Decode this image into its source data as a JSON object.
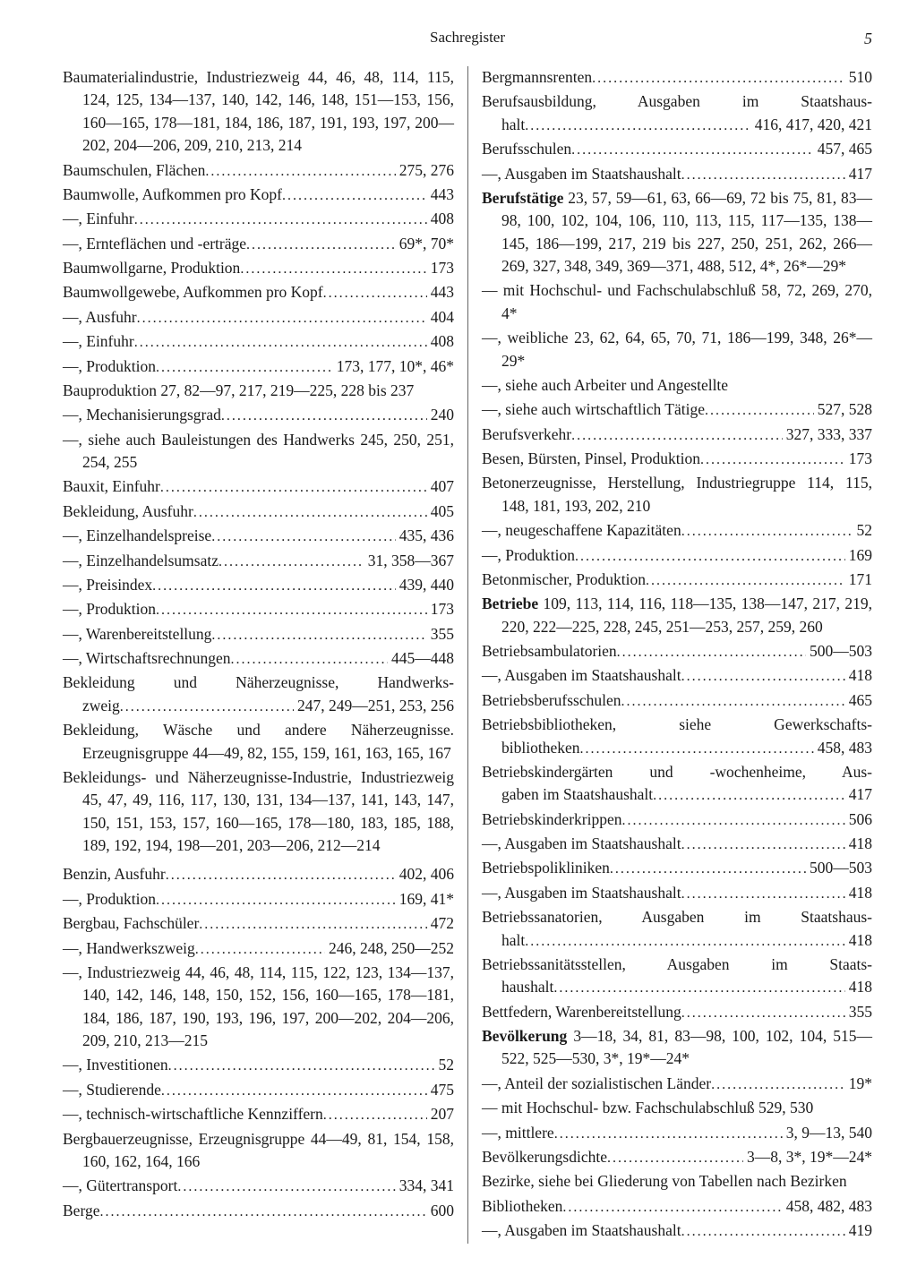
{
  "header": {
    "title": "Sachregister",
    "page": "5"
  },
  "left": [
    {
      "t": "wrap",
      "text": "Baumaterialindustrie, Industriezweig 44, 46, 48, 114, 115, 124, 125, 134—137, 140, 142, 146, 148, 151—153, 156, 160—165, 178—181, 184, 186, 187, 191, 193, 197, 200—202, 204—206, 209, 210, 213, 214"
    },
    {
      "t": "dot",
      "text": "Baumschulen, Flächen",
      "pages": "275, 276"
    },
    {
      "t": "dot",
      "text": "Baumwolle, Aufkommen pro Kopf",
      "pages": "443"
    },
    {
      "t": "dot",
      "text": "—, Einfuhr",
      "pages": "408"
    },
    {
      "t": "dot",
      "text": "—, Ernteflächen und -erträge",
      "pages": "69*, 70*"
    },
    {
      "t": "dot",
      "text": "Baumwollgarne, Produktion",
      "pages": "173"
    },
    {
      "t": "dot",
      "text": "Baumwollgewebe, Aufkommen pro Kopf",
      "pages": "443"
    },
    {
      "t": "dot",
      "text": "—, Ausfuhr",
      "pages": "404"
    },
    {
      "t": "dot",
      "text": "—, Einfuhr",
      "pages": "408"
    },
    {
      "t": "dot",
      "text": "—, Produktion",
      "pages": "173, 177, 10*, 46*"
    },
    {
      "t": "wrap",
      "text": "Bauproduktion 27, 82—97, 217, 219—225, 228 bis 237"
    },
    {
      "t": "dot",
      "text": "—, Mechanisierungsgrad",
      "pages": "240"
    },
    {
      "t": "wrap",
      "text": "—, siehe auch Bauleistungen des Handwerks 245, 250, 251, 254, 255"
    },
    {
      "t": "dot",
      "text": "Bauxit, Einfuhr",
      "pages": "407"
    },
    {
      "t": "dot",
      "text": "Bekleidung, Ausfuhr",
      "pages": "405"
    },
    {
      "t": "dot",
      "text": "—, Einzelhandelspreise",
      "pages": "435, 436"
    },
    {
      "t": "dot",
      "text": "—, Einzelhandelsumsatz",
      "pages": "31, 358—367"
    },
    {
      "t": "dot",
      "text": "—, Preisindex",
      "pages": "439, 440"
    },
    {
      "t": "dot",
      "text": "—, Produktion",
      "pages": "173"
    },
    {
      "t": "dot",
      "text": "—, Warenbereitstellung",
      "pages": "355"
    },
    {
      "t": "dot",
      "text": "—, Wirtschaftsrechnungen",
      "pages": "445—448"
    },
    {
      "t": "wrapdot",
      "pre": "Bekleidung und Näherzeugnisse, Handwerks-",
      "text": "zweig",
      "pages": "247, 249—251, 253, 256"
    },
    {
      "t": "wrap",
      "text": "Bekleidung, Wäsche und andere Näherzeugnisse. Erzeugnisgruppe 44—49, 82, 155, 159, 161, 163, 165, 167"
    },
    {
      "t": "wrap",
      "text": "Bekleidungs- und Näherzeugnisse-Industrie, Industriezweig 45, 47, 49, 116, 117, 130, 131, 134—137, 141, 143, 147, 150, 151, 153, 157, 160—165, 178—180, 183, 185, 188, 189, 192, 194, 198—201, 203—206, 212—214"
    },
    {
      "t": "spacer"
    },
    {
      "t": "dot",
      "text": "Benzin, Ausfuhr",
      "pages": "402, 406"
    },
    {
      "t": "dot",
      "text": "—, Produktion",
      "pages": "169, 41*"
    },
    {
      "t": "dot",
      "text": "Bergbau, Fachschüler",
      "pages": "472"
    },
    {
      "t": "dot",
      "text": "—, Handwerkszweig",
      "pages": "246, 248, 250—252"
    },
    {
      "t": "wrap",
      "text": "—, Industriezweig 44, 46, 48, 114, 115, 122, 123, 134—137, 140, 142, 146, 148, 150, 152, 156, 160—165, 178—181, 184, 186, 187, 190, 193, 196, 197, 200—202, 204—206, 209, 210, 213—215"
    },
    {
      "t": "dot",
      "text": "—, Investitionen",
      "pages": "52"
    },
    {
      "t": "dot",
      "text": "—, Studierende",
      "pages": "475"
    },
    {
      "t": "dot",
      "text": "—, technisch-wirtschaftliche Kennziffern",
      "pages": "207"
    },
    {
      "t": "wrap",
      "text": "Bergbauerzeugnisse, Erzeugnisgruppe 44—49, 81, 154, 158, 160, 162, 164, 166"
    },
    {
      "t": "dot",
      "text": "—, Gütertransport",
      "pages": "334, 341"
    },
    {
      "t": "dot",
      "text": "Berge",
      "pages": "600"
    }
  ],
  "right": [
    {
      "t": "dot",
      "text": "Bergmannsrenten",
      "pages": "510"
    },
    {
      "t": "wrapdot",
      "pre": "Berufsausbildung, Ausgaben im Staatshaus-",
      "text": "halt",
      "pages": "416, 417, 420, 421"
    },
    {
      "t": "dot",
      "text": "Berufsschulen",
      "pages": "457, 465"
    },
    {
      "t": "dot",
      "text": "—, Ausgaben im Staatshaushalt",
      "pages": "417"
    },
    {
      "t": "wrap",
      "bold": "Berufstätige",
      "text": " 23, 57, 59—61, 63, 66—69, 72 bis 75, 81, 83—98, 100, 102, 104, 106, 110, 113, 115, 117—135, 138—145, 186—199, 217, 219 bis 227, 250, 251, 262, 266—269, 327, 348, 349, 369—371, 488, 512, 4*, 26*—29*"
    },
    {
      "t": "wrap",
      "text": "— mit Hochschul- und Fachschulabschluß 58, 72, 269, 270, 4*"
    },
    {
      "t": "wrap",
      "text": "—, weibliche 23, 62, 64, 65, 70, 71, 186—199, 348, 26*—29*"
    },
    {
      "t": "plain",
      "text": "—, siehe auch Arbeiter und Angestellte"
    },
    {
      "t": "dot",
      "text": "—, siehe auch wirtschaftlich Tätige",
      "pages": "527, 528"
    },
    {
      "t": "dot",
      "text": "Berufsverkehr",
      "pages": "327, 333, 337"
    },
    {
      "t": "dot",
      "text": "Besen, Bürsten, Pinsel, Produktion",
      "pages": "173"
    },
    {
      "t": "wrap",
      "text": "Betonerzeugnisse, Herstellung, Industriegruppe 114, 115, 148, 181, 193, 202, 210"
    },
    {
      "t": "dot",
      "text": "—, neugeschaffene Kapazitäten",
      "pages": "52"
    },
    {
      "t": "dot",
      "text": "—, Produktion",
      "pages": "169"
    },
    {
      "t": "dot",
      "text": "Betonmischer, Produktion",
      "pages": "171"
    },
    {
      "t": "wrap",
      "bold": "Betriebe",
      "text": " 109, 113, 114, 116, 118—135, 138—147, 217, 219, 220, 222—225, 228, 245, 251—253, 257, 259, 260"
    },
    {
      "t": "dot",
      "text": "Betriebsambulatorien",
      "pages": "500—503"
    },
    {
      "t": "dot",
      "text": "—, Ausgaben im Staatshaushalt",
      "pages": "418"
    },
    {
      "t": "dot",
      "text": "Betriebsberufsschulen",
      "pages": "465"
    },
    {
      "t": "wrapdot",
      "pre": "Betriebsbibliotheken, siehe Gewerkschafts-",
      "text": "bibliotheken",
      "pages": "458, 483"
    },
    {
      "t": "wrapdot",
      "pre": "Betriebskindergärten und -wochenheime, Aus-",
      "text": "gaben im Staatshaushalt",
      "pages": "417"
    },
    {
      "t": "dot",
      "text": "Betriebskinderkrippen",
      "pages": "506"
    },
    {
      "t": "dot",
      "text": "—, Ausgaben im Staatshaushalt",
      "pages": "418"
    },
    {
      "t": "dot",
      "text": "Betriebspolikliniken",
      "pages": "500—503"
    },
    {
      "t": "dot",
      "text": "—, Ausgaben im Staatshaushalt",
      "pages": "418"
    },
    {
      "t": "wrapdot",
      "pre": "Betriebssanatorien, Ausgaben im Staatshaus-",
      "text": "halt",
      "pages": "418"
    },
    {
      "t": "wrapdot",
      "pre": "Betriebssanitätsstellen, Ausgaben im Staats-",
      "text": "haushalt",
      "pages": "418"
    },
    {
      "t": "dot",
      "text": "Bettfedern, Warenbereitstellung",
      "pages": "355"
    },
    {
      "t": "wrap",
      "bold": "Bevölkerung",
      "text": " 3—18, 34, 81, 83—98, 100, 102, 104, 515—522, 525—530, 3*, 19*—24*"
    },
    {
      "t": "dot",
      "text": "—, Anteil der sozialistischen Länder",
      "pages": "19*"
    },
    {
      "t": "wrap",
      "text": "— mit Hochschul- bzw. Fachschulabschluß 529, 530"
    },
    {
      "t": "dot",
      "text": "—, mittlere",
      "pages": "3, 9—13, 540"
    },
    {
      "t": "dot",
      "text": "Bevölkerungsdichte",
      "pages": "3—8, 3*, 19*—24*"
    },
    {
      "t": "wrap",
      "text": "Bezirke, siehe bei Gliederung von Tabellen nach Bezirken"
    },
    {
      "t": "dot",
      "text": "Bibliotheken",
      "pages": "458, 482, 483"
    },
    {
      "t": "dot",
      "text": "—, Ausgaben im Staatshaushalt",
      "pages": "419"
    }
  ]
}
